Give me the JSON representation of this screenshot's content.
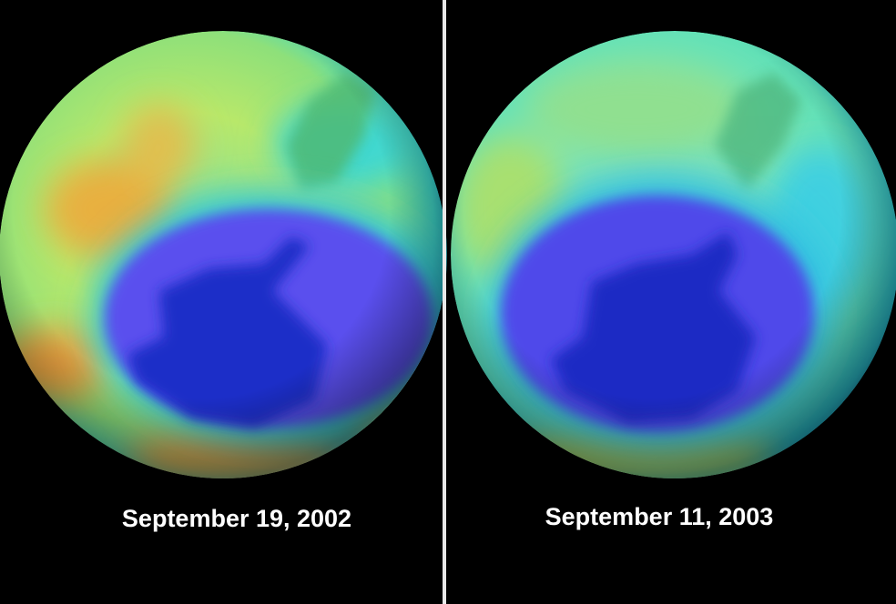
{
  "panels": [
    {
      "caption": "September 19, 2002"
    },
    {
      "caption": "September 11, 2003"
    }
  ]
}
